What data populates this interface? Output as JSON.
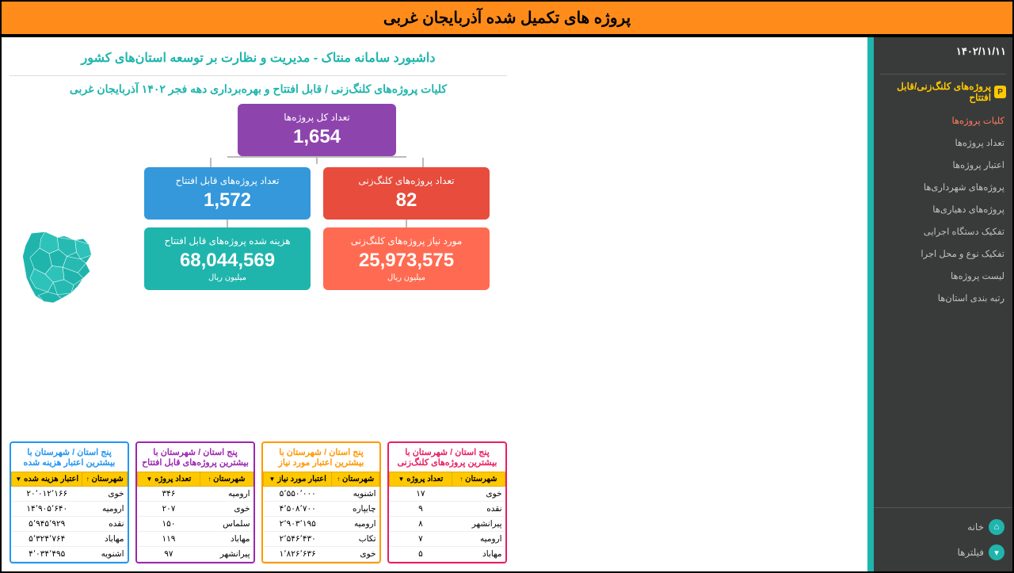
{
  "banner_title": "پروژه های تکمیل شده آذربایجان غربی",
  "date": "۱۴۰۲/۱۱/۱۱",
  "sidebar": {
    "section_title": "پروژه‌های کلنگ‌زنی/قابل افتتاح",
    "items": [
      "کلیات پروژه‌ها",
      "تعداد پروژه‌ها",
      "اعتبار پروژه‌ها",
      "پروژه‌های شهرداری‌ها",
      "پروژه‌های دهیاری‌ها",
      "تفکیک دستگاه اجرایی",
      "تفکیک نوع و محل اجرا",
      "لیست پروژه‌ها",
      "رتبه بندی استان‌ها"
    ],
    "home": "خانه",
    "filters": "فیلترها"
  },
  "dashboard_title": "داشبورد سامانه منتاک - مدیریت و نظارت بر توسعه استان‌های کشور",
  "dashboard_subtitle": "کلیات پروژه‌های کلنگ‌زنی / قابل افتتاح و بهره‌برداری  دهه فجر ۱۴۰۲  آذربایجان غربی",
  "metrics": {
    "total": {
      "label": "تعداد کل پروژه‌ها",
      "value": "1,654"
    },
    "ground": {
      "label": "تعداد پروژه‌های کلنگ‌زنی",
      "value": "82"
    },
    "ready": {
      "label": "تعداد پروژه‌های قابل افتتاح",
      "value": "1,572"
    },
    "need": {
      "label": "مورد نیاز پروژه‌های کلنگ‌زنی",
      "value": "25,973,575",
      "unit": "میلیون ریال"
    },
    "cost": {
      "label": "هزینه شده پروژه‌های قابل افتتاح",
      "value": "68,044,569",
      "unit": "میلیون ریال"
    }
  },
  "tables": {
    "col_city": "شهرستان",
    "t1": {
      "title": "پنج استان / شهرستان با بیشترین پروژه‌های کلنگ‌زنی",
      "col2": "تعداد پروژه",
      "rows": [
        [
          "خوی",
          "۱۷"
        ],
        [
          "نقده",
          "۹"
        ],
        [
          "پیرانشهر",
          "۸"
        ],
        [
          "ارومیه",
          "۷"
        ],
        [
          "مهاباد",
          "۵"
        ]
      ]
    },
    "t2": {
      "title": "پنج استان / شهرستان با بیشترین اعتبار مورد نیاز",
      "col2": "اعتبار مورد نیاز",
      "rows": [
        [
          "اشنویه",
          "۵٬۵۵۰٬۰۰۰"
        ],
        [
          "چایپاره",
          "۴٬۵۰۸٬۷۰۰"
        ],
        [
          "ارومیه",
          "۲٬۹۰۳٬۱۹۵"
        ],
        [
          "تکاب",
          "۲٬۵۴۶٬۴۳۰"
        ],
        [
          "خوی",
          "۱٬۸۲۶٬۶۳۶"
        ]
      ]
    },
    "t3": {
      "title": "پنج استان / شهرستان با بیشترین پروژه‌های قابل افتتاح",
      "col2": "تعداد پروژه",
      "rows": [
        [
          "ارومیه",
          "۳۴۶"
        ],
        [
          "خوی",
          "۲۰۷"
        ],
        [
          "سلماس",
          "۱۵۰"
        ],
        [
          "مهاباد",
          "۱۱۹"
        ],
        [
          "پیرانشهر",
          "۹۷"
        ]
      ]
    },
    "t4": {
      "title": "پنج استان / شهرستان با بیشترین اعتبار هزینه شده",
      "col2": "اعتبار هزینه شده",
      "rows": [
        [
          "خوی",
          "۲۰٬۰۱۲٬۱۶۶"
        ],
        [
          "ارومیه",
          "۱۴٬۹۰۵٬۶۴۰"
        ],
        [
          "نقده",
          "۵٬۹۴۵٬۹۲۹"
        ],
        [
          "مهاباد",
          "۵٬۳۲۴٬۷۶۴"
        ],
        [
          "اشنویه",
          "۴٬۰۳۴٬۴۹۵"
        ]
      ]
    }
  },
  "colors": {
    "accent": "#1fb5ad",
    "banner": "#ff8c1a",
    "sidebar_bg": "#393b3a",
    "purple": "#8e44ad",
    "red": "#e74c3c",
    "blue": "#3498db",
    "orange_red": "#ff6b52",
    "teal": "#1fb5ad",
    "table_header": "#ffc800"
  }
}
